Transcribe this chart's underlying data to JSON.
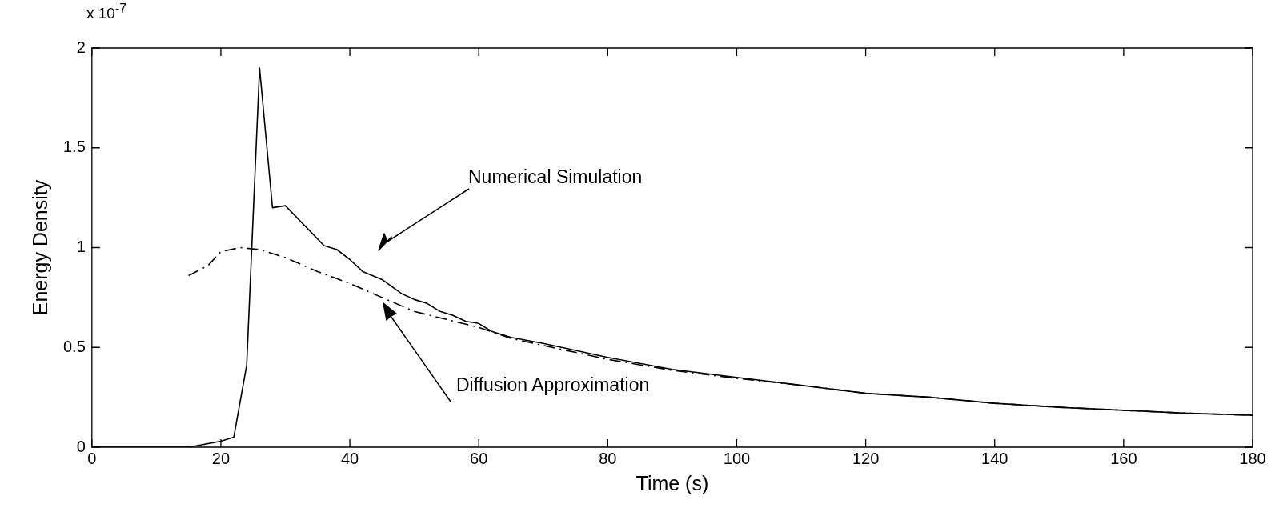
{
  "chart_data": {
    "type": "line",
    "xlabel": "Time (s)",
    "ylabel": "Energy Density",
    "xlim": [
      0,
      180
    ],
    "xticks": [
      0,
      20,
      40,
      60,
      80,
      100,
      120,
      140,
      160,
      180
    ],
    "ylim": [
      0,
      2
    ],
    "yticks": [
      0,
      0.5,
      1,
      1.5,
      2
    ],
    "grid": false,
    "legend": false,
    "marker": "none",
    "series": [
      {
        "color": "#000000",
        "line_style": "solid",
        "x": [
          0,
          15,
          20,
          22,
          24,
          26,
          28,
          30,
          36,
          38,
          40,
          42,
          45,
          48,
          50,
          52,
          54,
          56,
          58,
          60,
          62,
          65,
          70,
          80,
          90,
          100,
          110,
          120,
          130,
          140,
          150,
          160,
          170,
          180
        ],
        "values": [
          0,
          0,
          0.03,
          0.05,
          0.41,
          1.9,
          1.2,
          1.21,
          1.01,
          0.99,
          0.94,
          0.88,
          0.84,
          0.77,
          0.74,
          0.72,
          0.68,
          0.66,
          0.63,
          0.62,
          0.58,
          0.55,
          0.52,
          0.45,
          0.39,
          0.35,
          0.31,
          0.27,
          0.25,
          0.22,
          0.2,
          0.185,
          0.17,
          0.16
        ]
      },
      {
        "color": "#000000",
        "line_style": "dashed",
        "x": [
          15,
          18,
          20,
          23,
          26,
          30,
          35,
          40,
          45,
          50,
          55,
          60,
          65,
          70,
          80,
          90,
          100,
          110,
          120,
          130,
          140,
          150,
          160,
          170,
          180
        ],
        "values": [
          0.86,
          0.91,
          0.98,
          1.0,
          0.99,
          0.95,
          0.88,
          0.82,
          0.75,
          0.68,
          0.64,
          0.6,
          0.545,
          0.51,
          0.44,
          0.385,
          0.345,
          0.31,
          0.27,
          0.25,
          0.22,
          0.2,
          0.185,
          0.17,
          0.16
        ]
      }
    ],
    "annotations": [
      "x 10$^{-7}$",
      "Numerical Simulation",
      "Diffusion Approximation"
    ]
  }
}
